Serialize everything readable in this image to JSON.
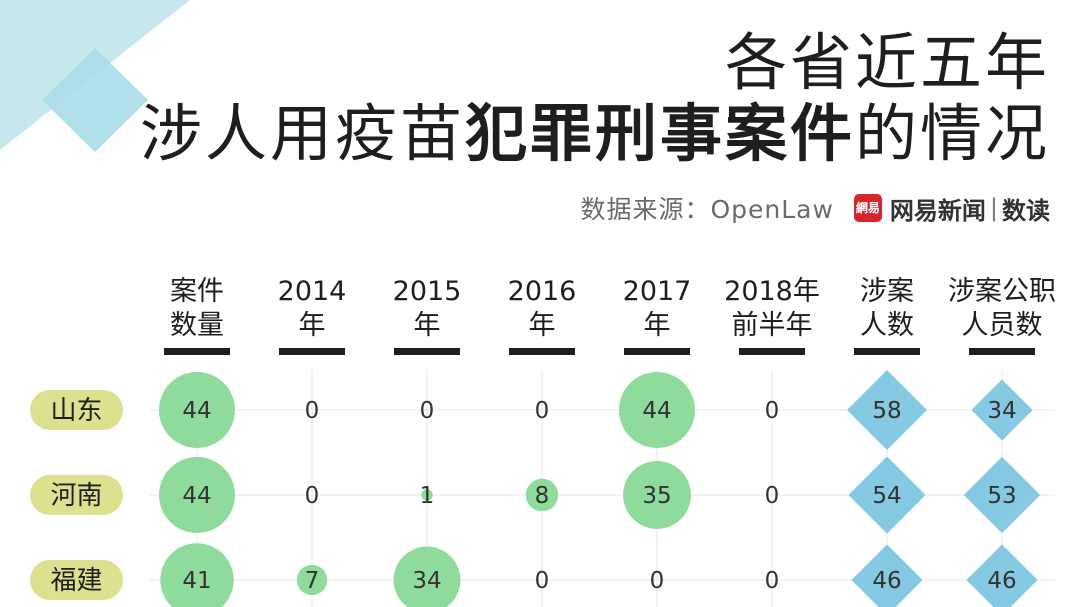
{
  "title": {
    "line1": "各省近五年",
    "line2_prefix": "涉人用疫苗",
    "line2_bold": "犯罪刑事案件",
    "line2_suffix": "的情况"
  },
  "source": {
    "text": "数据来源：OpenLaw",
    "brand_logo": "網易",
    "brand_name": "网易新闻",
    "brand_sep": "|",
    "brand_sub": "数读"
  },
  "colors": {
    "circle": "#8edb9b",
    "diamond": "#86c9e2",
    "row_label": "#dde08e",
    "column_bar": "#1e1e1e",
    "deco": "#bfe3ec"
  },
  "chart_data": {
    "type": "table",
    "columns": [
      {
        "line1": "案件",
        "line2": "数量",
        "shape": "circle"
      },
      {
        "line1": "2014",
        "line2": "年",
        "shape": "circle"
      },
      {
        "line1": "2015",
        "line2": "年",
        "shape": "circle"
      },
      {
        "line1": "2016",
        "line2": "年",
        "shape": "circle"
      },
      {
        "line1": "2017",
        "line2": "年",
        "shape": "circle"
      },
      {
        "line1": "2018年",
        "line2": "前半年",
        "shape": "circle"
      },
      {
        "line1": "涉案",
        "line2": "人数",
        "shape": "diamond"
      },
      {
        "line1": "涉案公职",
        "line2": "人员数",
        "shape": "diamond"
      }
    ],
    "rows": [
      {
        "label": "山东",
        "values": [
          44,
          0,
          0,
          0,
          44,
          0,
          58,
          34
        ]
      },
      {
        "label": "河南",
        "values": [
          44,
          0,
          1,
          8,
          35,
          0,
          54,
          53
        ]
      },
      {
        "label": "福建",
        "values": [
          41,
          7,
          34,
          0,
          0,
          0,
          46,
          46
        ]
      }
    ]
  }
}
